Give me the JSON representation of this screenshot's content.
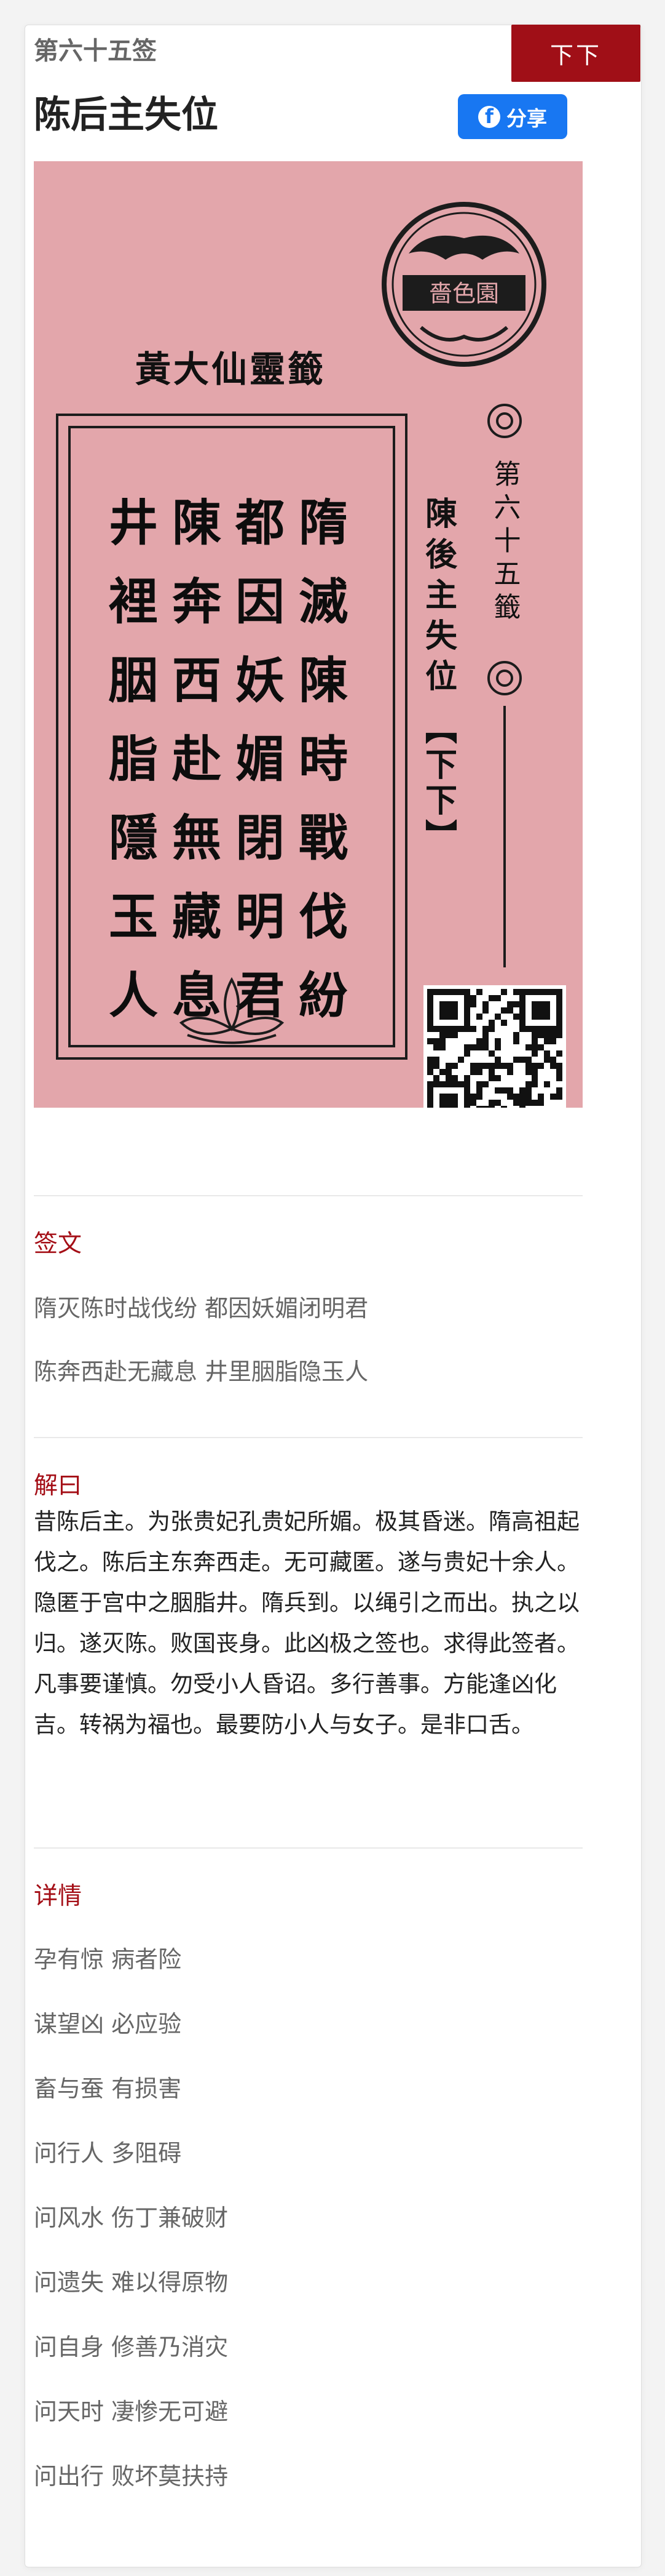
{
  "badge": "下下",
  "lot_number": "第六十五签",
  "lot_title": "陈后主失位",
  "share_label": "分享",
  "image": {
    "oracle_name": "黃大仙靈籤",
    "seal_text": "嗇色園",
    "side_number": "第六十五籤",
    "side_title": "陳後主失位",
    "side_rank": "【下下】",
    "poem_columns": [
      "隋滅陳時戰伐紛",
      "都因妖媚閉明君",
      "陳奔西赴無藏息",
      "井裡胭脂隱玉人"
    ],
    "bg_color": "#e3a6ab"
  },
  "poem_section": {
    "title": "签文",
    "lines": [
      "隋灭陈时战伐纷 都因妖媚闭明君",
      "陈奔西赴无藏息 井里胭脂隐玉人"
    ]
  },
  "explain_section": {
    "title": "解曰",
    "text": "昔陈后主。为张贵妃孔贵妃所媚。极其昏迷。隋高祖起伐之。陈后主东奔西走。无可藏匿。遂与贵妃十余人。隐匿于宫中之胭脂井。隋兵到。以绳引之而出。执之以归。遂灭陈。败国丧身。此凶极之签也。求得此签者。凡事要谨慎。勿受小人昏诏。多行善事。方能逢凶化吉。转祸为福也。最要防小人与女子。是非口舌。"
  },
  "detail_section": {
    "title": "详情",
    "items": [
      "孕有惊 病者险",
      "谋望凶 必应验",
      "畜与蚕 有损害",
      "问行人 多阻碍",
      "问风水 伤丁兼破财",
      "问遗失 难以得原物",
      "问自身 修善乃消灾",
      "问天时 凄惨无可避",
      "问出行 败坏莫扶持"
    ]
  },
  "colors": {
    "accent": "#a00f17",
    "section_title": "#a40e16",
    "share": "#1877f2"
  }
}
